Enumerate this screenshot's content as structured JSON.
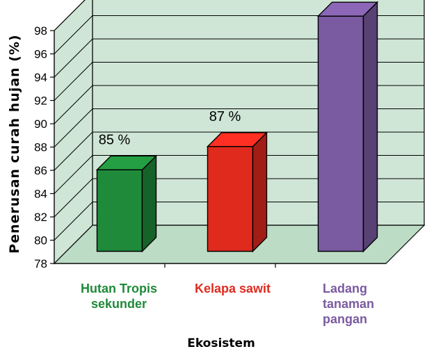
{
  "chart_data": {
    "type": "bar",
    "title": "",
    "xlabel": "Ekosistem",
    "ylabel": "Penerusan curah hujan (%)",
    "ylim": [
      78,
      98
    ],
    "yticks": [
      "78",
      "80",
      "82",
      "84",
      "86",
      "88",
      "90",
      "92",
      "94",
      "96",
      "98"
    ],
    "grid": true,
    "categories": [
      {
        "label_lines": [
          "Hutan Tropis",
          "sekunder"
        ],
        "color": "#1f8a3a"
      },
      {
        "label_lines": [
          "Kelapa sawit"
        ],
        "color": "#e02a1e"
      },
      {
        "label_lines": [
          "Ladang",
          "tanaman",
          "pangan"
        ],
        "color": "#7a5aa0"
      }
    ],
    "values": [
      85,
      87,
      98.2
    ],
    "data_labels": [
      "85 %",
      "87 %",
      ""
    ],
    "colors": {
      "wall": "#cfe6d6",
      "floor": "#bcdcc6",
      "bars": [
        "#1f8a3a",
        "#e02a1e",
        "#7a5aa0"
      ]
    }
  }
}
